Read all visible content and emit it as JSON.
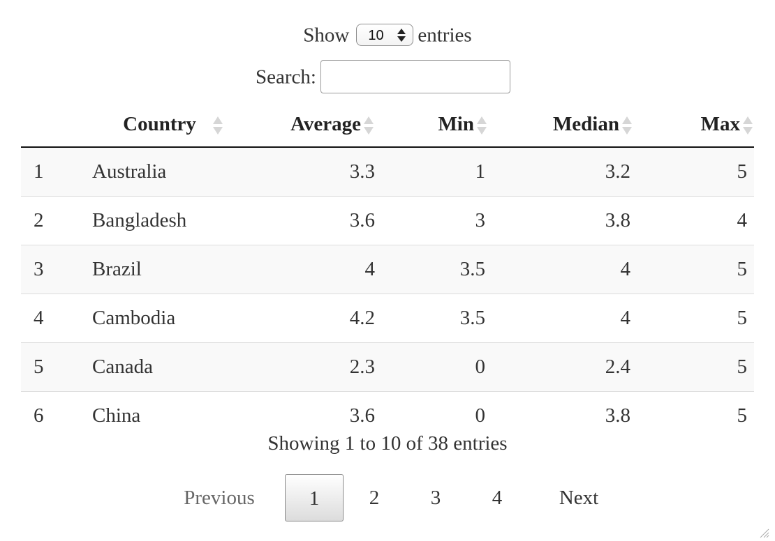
{
  "length_control": {
    "show_label": "Show",
    "selected": "10",
    "entries_label": "entries"
  },
  "search": {
    "label": "Search:",
    "value": ""
  },
  "table": {
    "columns": [
      "",
      "Country",
      "Average",
      "Min",
      "Median",
      "Max"
    ],
    "rows": [
      {
        "idx": "1",
        "country": "Australia",
        "average": "3.3",
        "min": "1",
        "median": "3.2",
        "max": "5"
      },
      {
        "idx": "2",
        "country": "Bangladesh",
        "average": "3.6",
        "min": "3",
        "median": "3.8",
        "max": "4"
      },
      {
        "idx": "3",
        "country": "Brazil",
        "average": "4",
        "min": "3.5",
        "median": "4",
        "max": "5"
      },
      {
        "idx": "4",
        "country": "Cambodia",
        "average": "4.2",
        "min": "3.5",
        "median": "4",
        "max": "5"
      },
      {
        "idx": "5",
        "country": "Canada",
        "average": "2.3",
        "min": "0",
        "median": "2.4",
        "max": "5"
      },
      {
        "idx": "6",
        "country": "China",
        "average": "3.6",
        "min": "0",
        "median": "3.8",
        "max": "5"
      }
    ]
  },
  "info": "Showing 1 to 10 of 38 entries",
  "pagination": {
    "previous": "Previous",
    "pages": [
      "1",
      "2",
      "3",
      "4"
    ],
    "current": "1",
    "next": "Next"
  }
}
